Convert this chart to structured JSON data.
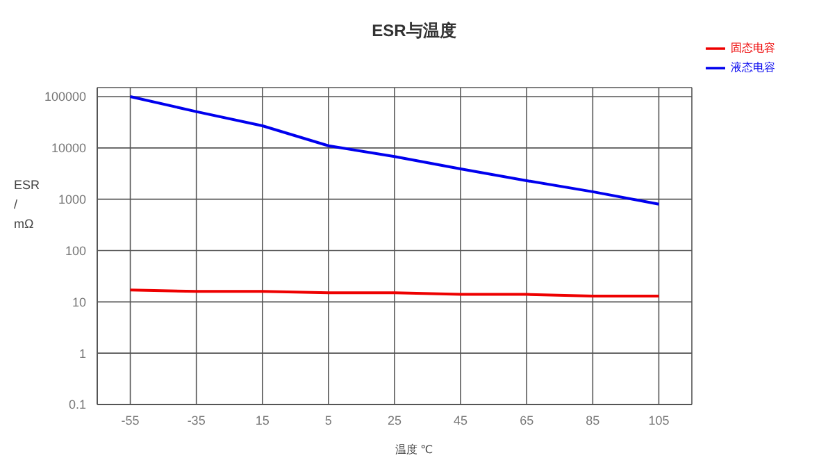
{
  "chart_data": {
    "type": "line",
    "title": "ESR与温度",
    "xlabel": "温度 ℃",
    "ylabel": "ESR / mΩ",
    "categories": [
      "-55",
      "-35",
      "15",
      "5",
      "25",
      "45",
      "65",
      "85",
      "105"
    ],
    "series": [
      {
        "name": "液态电容",
        "color": "#0000ee",
        "values": [
          100000,
          51000,
          27000,
          11000,
          6800,
          3900,
          2300,
          1400,
          800
        ]
      },
      {
        "name": "固态电容",
        "color": "#ee0000",
        "values": [
          17,
          16,
          16,
          15,
          15,
          14,
          14,
          13,
          13
        ]
      }
    ],
    "log": "y",
    "ylim": [
      0.1,
      150000
    ],
    "yticks": [
      0.1,
      1,
      10,
      100,
      1000,
      10000,
      100000
    ],
    "grid": true,
    "legend": "top right",
    "marker": "none",
    "line_style": "solid"
  }
}
